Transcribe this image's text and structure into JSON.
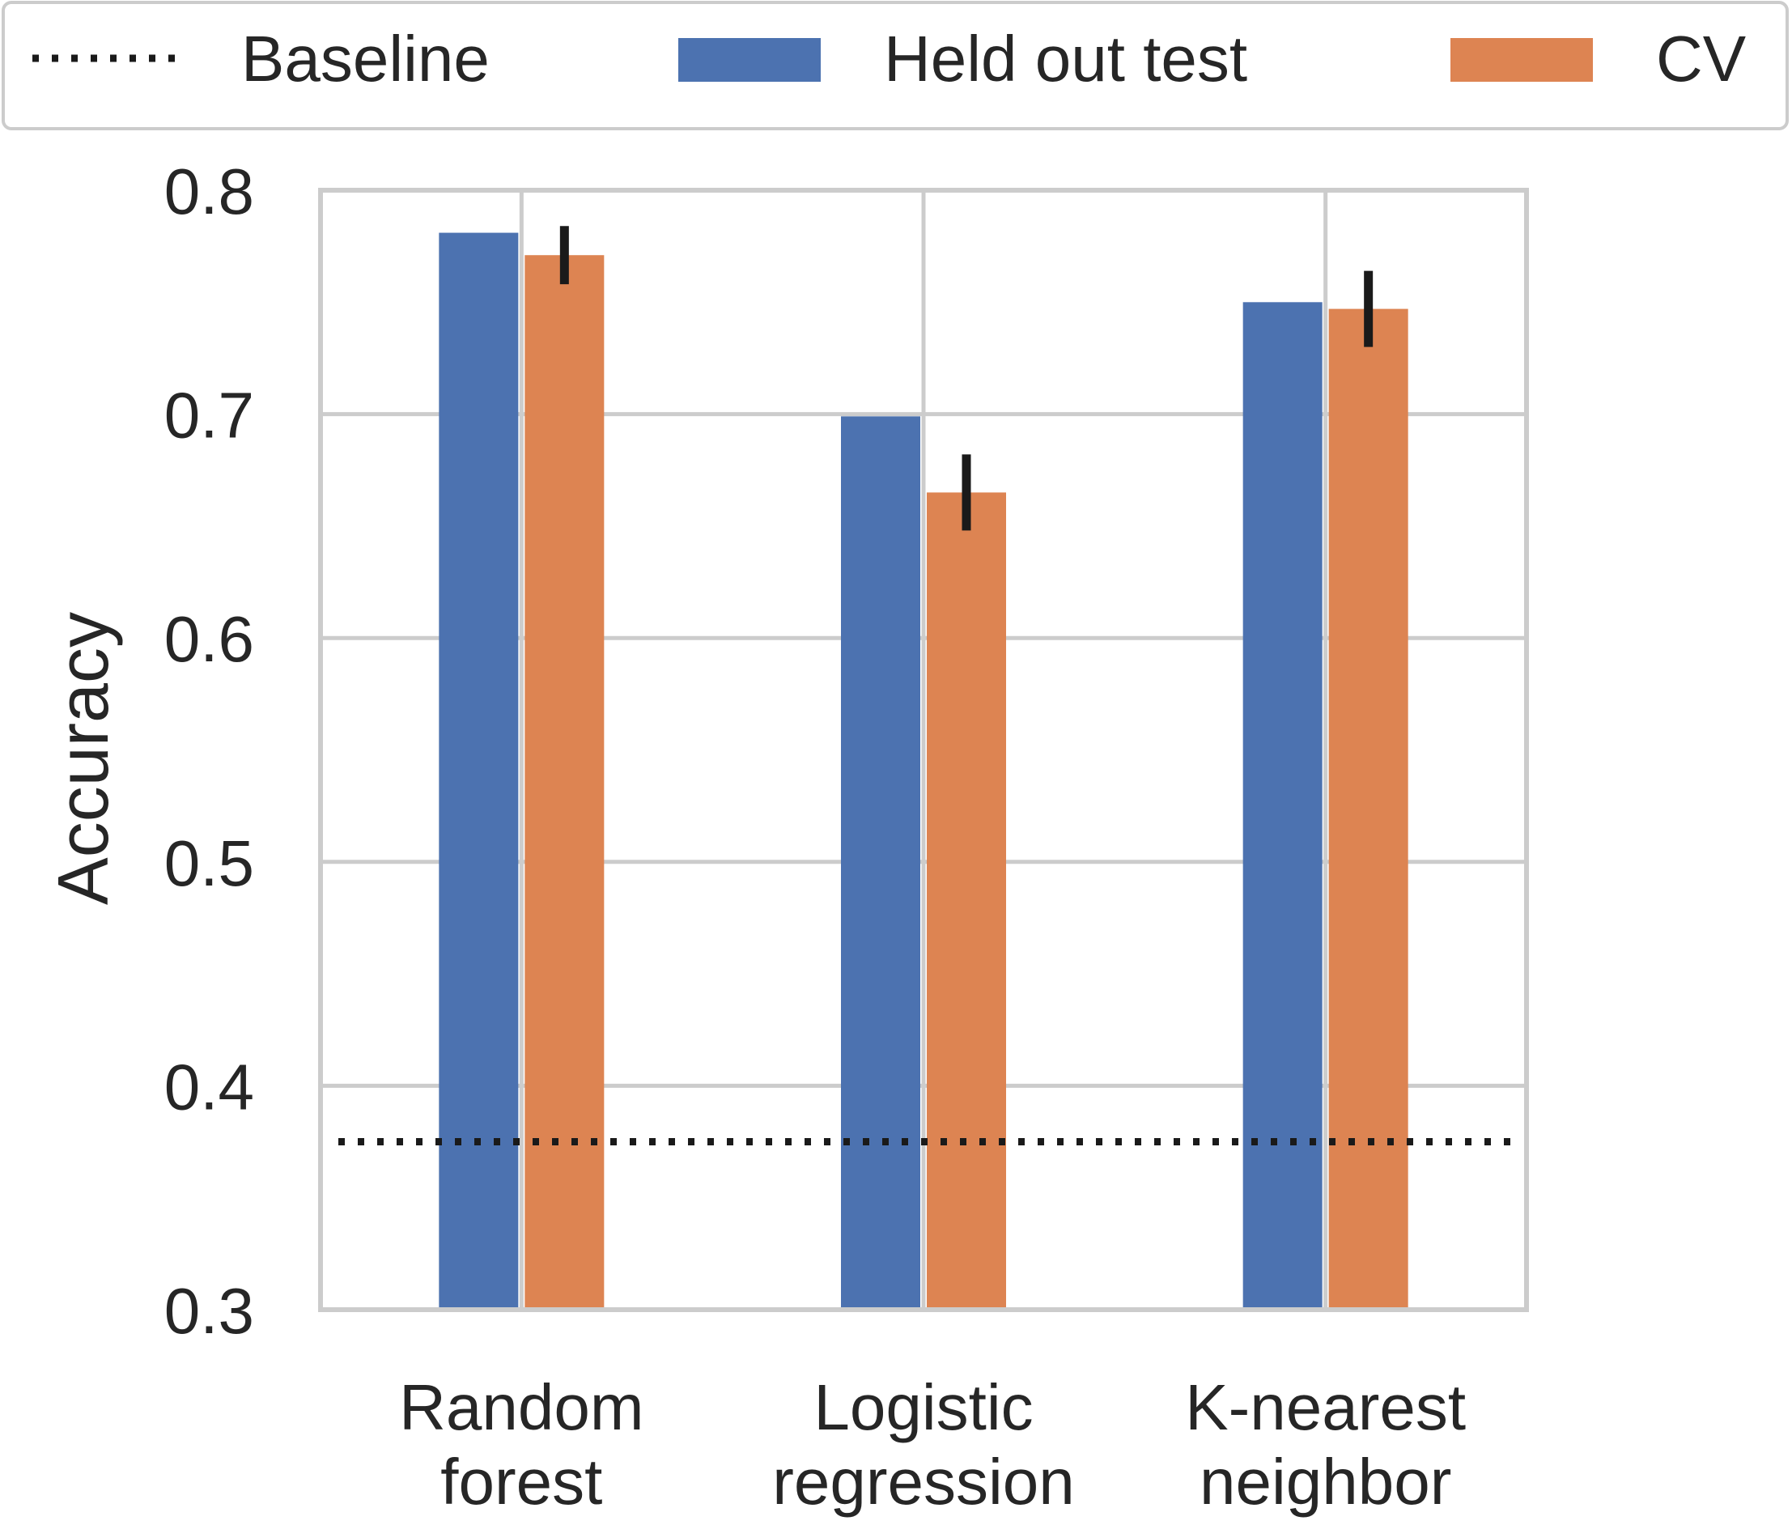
{
  "chart_data": {
    "type": "bar",
    "title": "",
    "xlabel": "",
    "ylabel": "Accuracy",
    "ylim": [
      0.3,
      0.8
    ],
    "yticks": [
      "0.3",
      "0.4",
      "0.5",
      "0.6",
      "0.7",
      "0.8"
    ],
    "grid": true,
    "legend_position": "top",
    "categories": [
      [
        "Random",
        "forest"
      ],
      [
        "Logistic",
        "regression"
      ],
      [
        "K-nearest",
        "neighbor"
      ]
    ],
    "series": [
      {
        "name": "Held out test",
        "color": "#4c72b0",
        "values": [
          0.781,
          0.699,
          0.75
        ],
        "errors": null
      },
      {
        "name": "CV",
        "color": "#dd8452",
        "values": [
          0.771,
          0.665,
          0.747
        ],
        "errors": [
          0.013,
          0.017,
          0.017
        ]
      }
    ],
    "baseline": {
      "name": "Baseline",
      "value": 0.375,
      "style": "dotted",
      "color": "#1a1a1a"
    }
  }
}
